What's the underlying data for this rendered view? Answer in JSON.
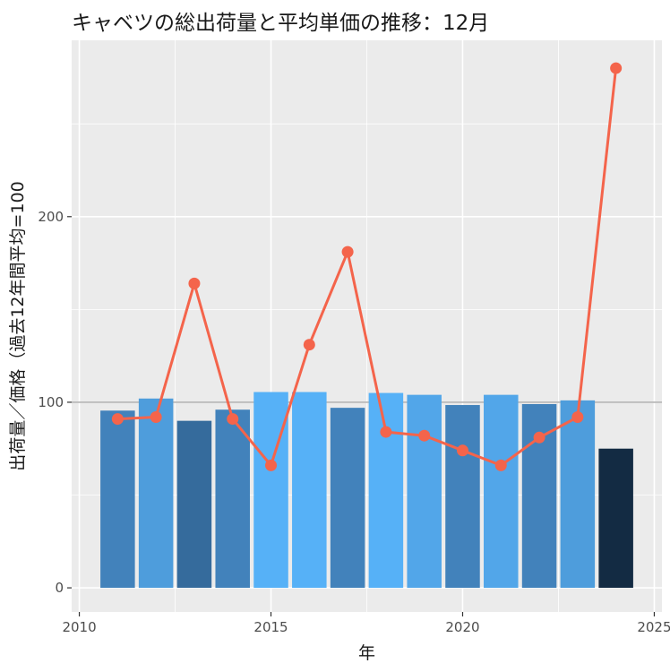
{
  "chart_data": {
    "type": "bar",
    "title": "キャベツの総出荷量と平均単価の推移：12月",
    "xlabel": "年",
    "ylabel": "出荷量／価格（過去12年間平均=100",
    "xlim": [
      2009.8,
      2025.2
    ],
    "ylim": [
      -13,
      295
    ],
    "x_ticks": [
      2010,
      2015,
      2020,
      2025
    ],
    "y_ticks": [
      0,
      100,
      200
    ],
    "reference_line": 100,
    "grid": true,
    "legend": "none",
    "colors": {
      "panel_bg": "#ebebeb",
      "grid_major": "#ffffff",
      "reference_line": "#b3b3b3",
      "price_line": "#f4644b"
    },
    "series": [
      {
        "type": "bar",
        "x": [
          2011,
          2012,
          2013,
          2014,
          2015,
          2016,
          2017,
          2018,
          2019,
          2020,
          2021,
          2022,
          2023,
          2024
        ],
        "values": [
          95.5,
          102,
          90,
          96,
          105.5,
          105.5,
          97,
          105,
          104,
          98.5,
          104,
          99,
          101,
          75
        ],
        "colors": [
          "#4282bb",
          "#4e9ddc",
          "#356b9c",
          "#4282bb",
          "#56b1f7",
          "#56b1f7",
          "#4282bb",
          "#56b1f7",
          "#52a6e9",
          "#4282bb",
          "#52a6e9",
          "#4282bb",
          "#4e9ddc",
          "#132b43"
        ]
      },
      {
        "type": "line",
        "x": [
          2011,
          2012,
          2013,
          2014,
          2015,
          2016,
          2017,
          2018,
          2019,
          2020,
          2021,
          2022,
          2023,
          2024
        ],
        "values": [
          91,
          92,
          164,
          91,
          66,
          131,
          181,
          84,
          82,
          74,
          66,
          81,
          92,
          280
        ]
      }
    ]
  }
}
